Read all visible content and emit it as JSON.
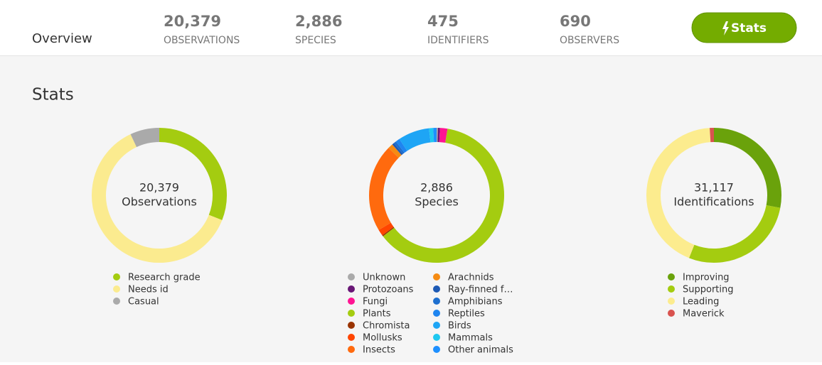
{
  "header": {
    "title": "Overview",
    "stats": [
      {
        "value": "20,379",
        "label": "OBSERVATIONS"
      },
      {
        "value": "2,886",
        "label": "SPECIES"
      },
      {
        "value": "475",
        "label": "IDENTIFIERS"
      },
      {
        "value": "690",
        "label": "OBSERVERS"
      }
    ],
    "button": "Stats"
  },
  "section_title": "Stats",
  "chart_data": [
    {
      "type": "pie",
      "donut": true,
      "center_value": "20,379",
      "center_label": "Observations",
      "categories": [
        "Research grade",
        "Needs id",
        "Casual"
      ],
      "values": [
        31,
        62,
        7
      ],
      "colors": [
        "#a4cc10",
        "#fbeb8f",
        "#aaaaaa"
      ]
    },
    {
      "type": "pie",
      "donut": true,
      "center_value": "2,886",
      "center_label": "Species",
      "categories": [
        "Unknown",
        "Protozoans",
        "Fungi",
        "Plants",
        "Chromista",
        "Mollusks",
        "Insects",
        "Arachnids",
        "Ray-finned f…",
        "Amphibians",
        "Reptiles",
        "Birds",
        "Mammals",
        "Other animals"
      ],
      "values": [
        0.3,
        0.5,
        1.8,
        62,
        0.3,
        1.5,
        21,
        1.2,
        0.5,
        0.6,
        1.0,
        7.5,
        1.0,
        0.8
      ],
      "colors": [
        "#aaaaaa",
        "#691776",
        "#ff1493",
        "#a4cc10",
        "#993300",
        "#ff4500",
        "#ff6a0e",
        "#f58b13",
        "#1e5ab4",
        "#1e6fcf",
        "#1e85f0",
        "#1ea5f5",
        "#1ec8f0",
        "#1e90ff"
      ]
    },
    {
      "type": "pie",
      "donut": true,
      "center_value": "31,117",
      "center_label": "Identifications",
      "categories": [
        "Improving",
        "Supporting",
        "Leading",
        "Maverick"
      ],
      "values": [
        28,
        28,
        43,
        1
      ],
      "colors": [
        "#6aa20b",
        "#a4cc10",
        "#fcec8e",
        "#d9534f"
      ]
    }
  ]
}
